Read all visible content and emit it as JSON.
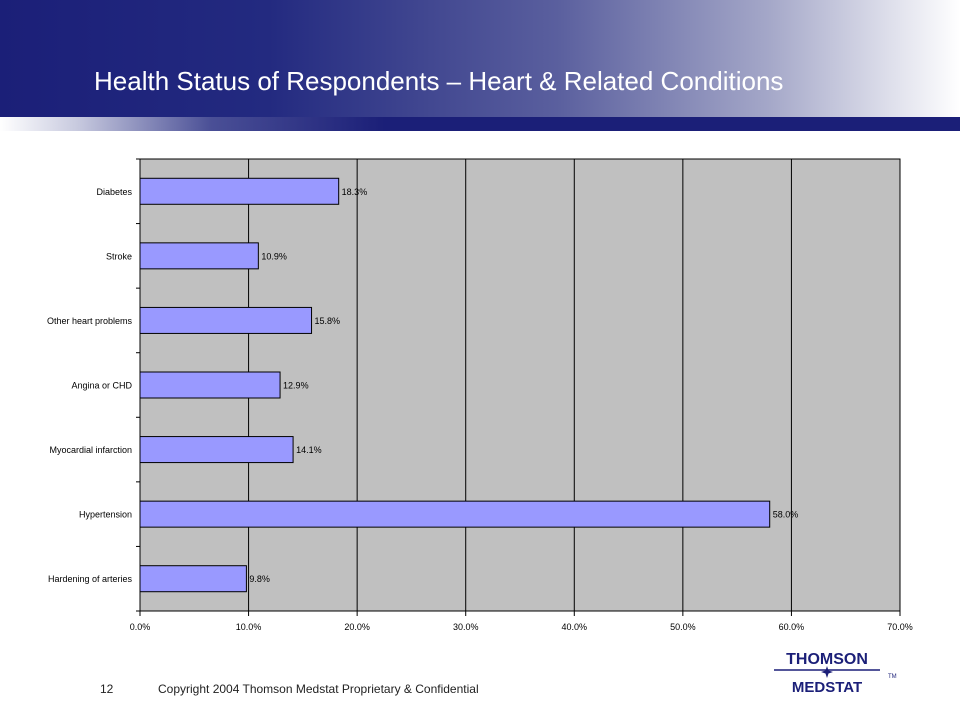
{
  "header": {
    "title": "Health Status of Respondents – Heart & Related Conditions"
  },
  "chart_data": {
    "type": "bar",
    "orientation": "horizontal",
    "categories": [
      "Diabetes",
      "Stroke",
      "Other heart problems",
      "Angina or CHD",
      "Myocardial infarction",
      "Hypertension",
      "Hardening of arteries"
    ],
    "values": [
      18.3,
      10.9,
      15.8,
      12.9,
      14.1,
      58.0,
      9.8
    ],
    "value_labels": [
      "18.3%",
      "10.9%",
      "15.8%",
      "12.9%",
      "14.1%",
      "58.0%",
      "9.8%"
    ],
    "x_ticks": [
      "0.0%",
      "10.0%",
      "20.0%",
      "30.0%",
      "40.0%",
      "50.0%",
      "60.0%",
      "70.0%"
    ],
    "xlim": [
      0,
      70
    ],
    "grid": true,
    "bar_color": "#9999ff",
    "plot_background": "#c0c0c0"
  },
  "footer": {
    "page_number": "12",
    "copyright": "Copyright 2004 Thomson Medstat  Proprietary & Confidential"
  },
  "logo": {
    "line1": "THOMSON",
    "line2": "MEDSTAT",
    "tm": "TM",
    "color": "#1b1f78"
  }
}
